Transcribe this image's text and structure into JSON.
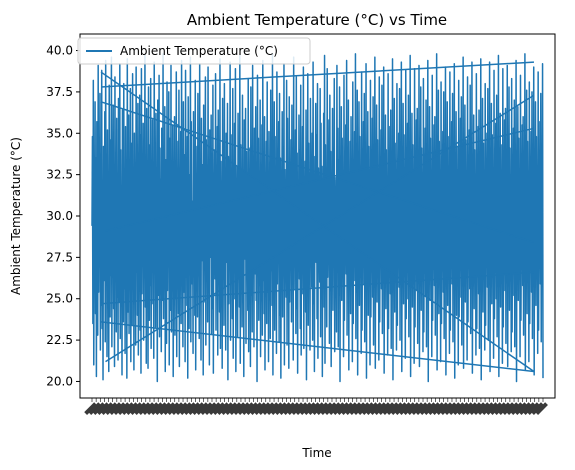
{
  "chart_data": {
    "type": "line",
    "title": "Ambient Temperature (°C) vs Time",
    "xlabel": "Time",
    "ylabel": "Ambient Temperature (°C)",
    "ylim": [
      19.0,
      41.0
    ],
    "yticks": [
      "20.0",
      "22.5",
      "25.0",
      "27.5",
      "30.0",
      "32.5",
      "35.0",
      "37.5",
      "40.0"
    ],
    "ytick_values": [
      20.0,
      22.5,
      25.0,
      27.5,
      30.0,
      32.5,
      35.0,
      37.5,
      40.0
    ],
    "xtick_labels_legible": false,
    "grid": false,
    "legend_placement": "top-left",
    "series": [
      {
        "name": "Ambient Temperature (°C)",
        "color": "#1f77b4",
        "values": [
          29.4,
          34.8,
          23.5,
          38.2,
          21.0,
          30.3,
          26.7,
          36.9,
          24.1,
          33.5,
          20.3,
          35.7,
          28.2,
          22.8,
          39.1,
          25.4,
          31.6,
          27.0,
          37.4,
          21.9,
          32.8,
          24.6,
          38.8,
          23.2,
          30.9,
          20.1,
          34.2,
          29.7,
          26.1,
          36.3,
          22.4,
          39.4,
          27.8,
          33.1,
          21.5,
          35.2,
          25.9,
          31.2,
          20.6,
          37.9,
          28.6,
          23.9,
          34.6,
          26.4,
          39.6,
          22.1,
          32.3,
          29.1,
          36.7,
          24.4,
          30.6,
          20.9,
          38.4,
          27.3,
          33.8,
          23.0,
          35.9,
          25.1,
          31.9,
          21.3,
          37.1,
          28.9,
          24.8,
          39.2,
          22.6,
          34.0,
          26.9,
          30.1,
          20.4,
          36.4,
          29.9,
          23.6,
          38.0,
          25.6,
          32.6,
          21.7,
          35.4,
          27.5,
          33.3,
          20.2,
          39.5,
          28.4,
          24.2,
          36.1,
          22.9,
          31.4,
          26.2,
          37.7,
          21.2,
          34.4,
          29.5,
          23.4,
          38.6,
          25.7,
          32.0,
          20.7,
          35.0,
          27.9,
          30.8,
          22.2,
          39.0,
          26.6,
          33.6,
          24.0,
          36.8,
          21.6,
          31.1,
          28.1,
          37.3,
          23.1,
          34.9,
          20.5,
          38.9,
          25.3,
          32.4,
          27.2,
          35.6,
          22.5,
          30.4,
          29.3,
          39.7,
          24.5,
          33.0,
          21.1,
          36.5,
          26.8,
          31.7,
          20.8,
          37.8,
          28.7,
          23.7,
          34.3,
          25.8,
          38.3,
          22.0,
          32.9,
          27.6,
          35.8,
          24.7,
          30.0,
          21.4,
          39.3,
          28.8,
          33.9,
          23.3,
          36.2,
          26.3,
          31.5,
          20.0,
          37.0,
          29.6,
          25.2,
          38.5,
          22.7,
          34.1,
          27.1,
          32.2,
          21.8,
          35.3,
          28.3,
          24.9,
          39.8,
          23.8,
          30.7,
          26.0,
          36.6,
          20.6,
          33.4,
          29.2,
          22.3,
          38.1,
          25.5,
          31.8,
          27.4,
          37.5,
          21.0,
          34.7,
          28.5,
          24.3,
          39.1,
          23.0,
          32.7,
          26.5,
          35.5,
          20.3,
          30.2,
          29.8,
          36.0,
          22.8,
          33.2,
          25.0,
          38.7,
          21.5,
          31.3,
          27.7,
          34.5,
          24.1,
          37.6,
          20.9,
          32.1,
          28.0,
          35.1,
          23.5,
          39.4,
          26.1,
          30.5,
          22.1,
          36.9,
          29.0,
          25.4,
          33.7,
          21.2,
          38.8,
          27.0,
          31.0,
          24.6,
          34.8,
          20.2,
          37.2,
          28.6,
          23.2,
          32.5,
          26.7,
          39.6,
          22.4,
          35.7,
          29.4,
          25.9,
          30.9,
          21.7,
          36.3,
          27.8,
          33.5,
          24.0,
          38.2,
          20.7,
          31.6,
          28.2,
          34.2,
          23.9,
          37.4,
          26.4,
          32.8,
          22.6,
          39.2,
          25.1,
          30.3,
          21.3,
          35.9,
          29.7,
          27.3,
          33.1,
          20.4,
          36.7,
          24.8,
          31.2,
          28.9,
          38.4,
          22.2,
          34.6,
          26.9,
          32.3,
          23.6,
          39.0,
          25.6,
          30.6,
          21.0,
          35.2,
          28.4,
          27.5,
          36.1,
          22.9,
          33.8,
          24.4,
          37.9,
          20.5,
          31.9,
          29.1,
          34.0,
          26.2,
          38.6,
          23.1,
          32.0,
          25.3,
          35.4,
          21.6,
          36.4,
          27.9,
          30.1,
          24.2,
          39.5,
          22.0,
          33.3,
          28.7,
          31.4,
          20.8,
          37.1,
          26.6,
          34.4,
          23.4,
          38.0,
          25.7,
          32.6,
          21.9,
          35.0,
          29.3,
          27.2,
          36.8,
          20.1,
          33.6,
          24.7,
          30.8,
          28.1,
          39.3,
          22.5,
          34.9,
          26.0,
          31.1,
          23.8,
          37.7,
          21.4,
          32.9,
          27.6,
          35.6,
          25.0,
          38.9,
          20.6,
          30.4,
          29.6,
          33.0,
          22.7,
          36.2,
          26.3,
          31.7,
          24.5,
          39.7,
          21.1,
          34.3,
          28.3,
          32.4,
          23.3,
          37.3,
          25.5,
          30.0,
          20.3,
          35.8,
          29.9,
          27.4,
          36.5,
          22.3,
          33.9,
          26.8,
          31.5,
          24.3,
          38.3,
          21.8,
          32.2,
          28.8,
          34.1,
          20.9,
          37.8,
          25.2,
          30.7,
          23.0,
          39.1,
          27.1,
          33.4,
          22.1,
          35.3,
          29.5,
          26.5,
          36.6,
          24.9,
          31.8,
          20.0,
          38.5,
          28.0,
          34.7,
          23.7,
          32.1,
          25.8,
          37.0,
          21.5,
          30.2,
          27.7,
          35.5,
          22.8,
          39.4,
          26.1,
          33.2,
          24.1,
          36.0,
          20.7,
          31.3,
          29.2,
          34.5,
          23.5,
          38.1,
          25.4,
          32.7,
          21.2,
          35.1,
          28.5,
          30.5,
          22.6,
          37.6,
          26.7,
          33.7,
          24.6,
          39.8,
          20.4,
          31.0,
          29.0,
          36.9,
          23.1,
          34.8,
          27.0,
          32.5,
          21.7,
          38.7,
          25.9,
          30.9,
          28.6,
          35.7,
          22.4,
          37.4,
          24.0,
          33.5,
          20.2,
          31.6,
          29.7,
          36.3,
          23.9,
          34.2,
          26.4,
          39.2,
          21.0,
          32.8,
          28.2,
          30.3,
          25.1,
          38.2,
          22.2,
          35.9,
          27.3,
          33.1,
          20.8,
          37.2,
          24.8,
          31.2,
          29.4,
          34.6,
          23.6,
          36.7,
          26.9,
          32.3,
          21.3,
          39.6,
          25.6,
          30.6,
          28.9,
          35.2,
          22.9,
          38.4,
          24.4,
          33.8,
          20.5,
          31.9,
          27.5,
          36.1,
          26.2,
          34.0,
          23.2,
          37.9,
          21.6,
          32.0,
          29.1,
          35.4,
          25.3,
          39.0,
          22.0,
          30.1,
          28.4,
          33.3,
          24.2,
          36.4,
          20.1,
          31.4,
          27.9,
          38.6,
          23.4,
          34.4,
          26.6,
          32.6,
          21.9,
          37.1,
          29.3,
          30.8,
          25.7,
          35.0,
          22.5,
          39.3,
          24.7,
          33.6,
          20.6,
          31.1,
          28.1,
          36.8,
          27.2,
          34.9,
          23.8,
          38.0,
          21.4,
          32.9,
          29.6,
          30.4,
          26.0,
          37.7,
          22.7,
          35.6,
          25.0,
          33.0,
          20.3,
          31.7,
          28.7,
          36.2,
          24.5,
          39.7,
          21.1,
          34.3,
          27.6,
          32.4,
          23.3,
          38.9,
          26.3,
          30.0,
          29.9,
          35.8,
          22.3,
          37.3,
          25.5,
          33.9,
          20.9,
          31.5,
          28.3,
          36.5,
          24.3,
          34.1,
          27.4,
          38.3,
          21.8,
          32.2,
          29.2,
          30.7,
          23.0,
          39.1,
          26.8,
          35.3,
          22.1,
          33.4,
          25.2,
          37.8,
          20.0,
          31.8,
          28.0,
          36.6,
          24.9,
          34.7,
          27.1,
          32.1,
          21.5,
          38.5,
          23.7,
          30.2,
          29.5,
          35.5,
          26.5,
          39.4,
          22.8,
          33.2,
          25.8,
          37.0,
          20.7,
          31.3,
          28.8,
          34.5,
          24.1,
          36.0,
          27.7,
          32.7,
          21.2,
          38.1,
          23.5,
          30.5,
          29.0,
          35.1,
          26.1,
          39.8,
          22.6,
          33.7,
          25.4,
          37.6,
          20.4,
          31.0,
          28.5,
          36.9,
          24.6,
          34.8,
          27.8,
          32.5,
          21.7,
          38.7,
          23.1,
          30.9,
          29.7,
          35.7,
          25.9,
          37.4,
          22.4,
          33.5,
          26.7,
          39.2,
          20.2,
          31.6,
          28.2,
          36.3,
          24.0,
          34.2,
          27.3,
          32.8,
          21.0,
          38.2,
          23.9,
          30.3,
          29.4,
          35.9,
          25.1,
          37.2,
          22.2,
          33.1,
          26.4,
          39.6,
          20.8,
          31.2,
          28.9,
          36.7,
          24.8,
          34.6,
          27.5,
          32.3,
          21.3,
          38.4,
          23.6,
          30.6,
          29.1,
          35.2,
          25.6,
          37.9,
          22.9,
          33.8,
          26.9,
          39.0,
          20.5,
          31.9,
          28.4,
          36.1,
          24.4,
          34.0,
          27.0,
          32.0,
          21.6,
          38.6,
          23.2,
          30.1,
          29.3,
          35.4,
          25.3,
          36.4,
          22.0,
          33.3,
          26.2,
          39.5,
          20.1,
          31.4,
          28.7,
          37.1,
          24.2,
          34.4,
          27.9,
          32.6,
          21.9,
          38.0,
          23.4,
          30.8,
          29.6,
          35.0,
          25.7,
          37.7,
          22.5,
          33.6,
          26.6,
          39.3,
          20.6,
          31.1,
          28.1,
          36.8,
          24.7,
          34.9,
          27.2,
          32.9,
          21.4,
          38.8,
          23.8,
          30.4,
          29.9,
          35.6,
          25.0,
          37.3,
          22.7,
          33.0,
          26.0,
          39.7,
          20.3,
          31.7,
          28.6,
          36.2,
          24.5,
          34.3,
          27.6,
          32.4,
          21.1,
          38.9,
          23.3,
          30.0,
          29.2,
          35.8,
          25.5,
          36.5,
          22.3,
          33.9,
          26.8,
          39.1,
          20.9,
          31.5,
          28.3,
          37.8,
          24.3,
          34.1,
          27.4,
          32.2,
          21.8,
          38.3,
          23.0,
          30.7,
          29.5,
          35.3,
          25.2,
          37.0,
          22.1,
          33.4,
          26.5,
          39.4,
          20.0,
          31.8,
          28.0,
          36.6,
          24.9,
          34.7,
          27.1,
          32.1,
          21.5,
          38.5,
          23.7,
          30.2,
          29.0,
          35.5,
          25.8,
          36.0,
          22.8,
          33.2,
          26.3,
          39.8,
          20.7,
          31.3,
          28.8,
          37.6,
          24.1,
          34.5,
          27.7,
          32.7,
          21.2,
          38.1,
          23.5,
          30.5,
          29.8,
          35.1,
          25.4,
          37.5,
          22.6,
          33.7,
          26.1,
          39.0,
          20.4,
          31.0,
          28.5,
          36.9,
          24.6,
          34.8,
          27.8,
          32.5,
          21.7,
          38.7,
          23.1,
          30.9,
          29.3,
          35.7,
          25.9,
          37.4,
          22.4,
          33.5,
          26.7,
          39.2,
          20.2,
          31.6,
          28.2,
          36.3,
          24.0,
          34.2,
          27.3,
          32.8,
          21.0,
          38.2,
          23.9,
          30.3,
          29.7,
          35.9,
          25.1,
          37.2,
          22.2,
          33.1,
          26.4,
          39.6,
          20.8,
          31.2,
          28.9,
          36.7,
          24.8,
          34.6,
          27.5,
          32.3,
          21.3,
          38.4,
          23.6,
          30.6,
          29.1,
          35.2,
          25.6,
          37.9,
          22.9,
          33.8,
          26.9,
          39.3,
          20.5,
          31.9,
          28.4,
          36.1,
          24.4,
          34.0,
          27.0,
          32.0,
          21.6,
          38.6,
          23.2,
          30.1,
          29.4,
          35.4,
          25.3,
          36.4,
          22.0,
          33.3,
          26.2,
          39.5,
          20.1,
          31.4,
          28.7,
          37.1,
          24.2,
          34.4,
          27.9,
          32.6,
          21.9,
          38.0,
          23.4,
          30.8,
          29.6,
          35.0,
          25.7,
          37.7,
          22.5,
          33.6,
          26.6,
          39.3,
          20.6,
          31.1,
          28.1,
          36.8,
          24.7,
          34.9,
          27.2,
          32.9,
          21.4,
          38.8,
          23.8,
          30.4,
          29.9,
          35.6,
          25.0,
          37.3,
          22.7,
          33.0,
          26.0,
          39.7,
          20.3,
          31.7,
          28.6,
          36.2,
          24.5,
          34.3,
          27.6,
          32.4,
          21.1,
          38.9,
          23.3,
          30.0,
          29.2,
          35.8,
          25.5,
          36.5,
          22.3,
          33.9,
          26.8,
          39.1,
          20.9,
          31.5,
          28.3,
          37.8,
          24.3,
          34.1,
          27.4,
          32.2,
          21.8,
          38.3,
          23.0,
          30.7,
          29.5,
          35.3,
          25.2,
          37.0,
          22.1,
          33.4,
          26.5,
          39.4,
          20.0,
          31.8,
          28.0,
          36.6,
          24.9,
          34.7,
          27.1,
          32.1,
          21.5,
          38.5,
          23.7,
          30.2,
          29.0,
          35.5,
          25.8,
          36.0,
          22.8,
          33.2,
          26.3,
          39.8,
          20.7,
          31.3,
          28.8,
          37.6,
          24.1,
          34.5,
          27.7,
          32.7,
          21.2,
          38.1,
          23.5,
          30.5,
          29.8,
          35.1,
          25.4,
          37.5,
          22.6,
          33.7,
          26.1,
          39.0,
          20.4,
          31.0,
          28.5,
          36.9,
          24.6,
          34.8,
          27.8,
          32.5,
          21.7,
          38.7,
          23.1,
          30.9,
          29.3,
          35.7,
          25.9,
          37.4,
          22.4,
          33.5,
          26.7,
          39.2,
          20.2
        ]
      }
    ],
    "wrap_segments": [
      {
        "from_index": 0.02,
        "from": 38.7,
        "to_index": 0.98,
        "to": 20.6
      },
      {
        "from_index": 0.02,
        "from": 37.8,
        "to_index": 0.98,
        "to": 39.3
      },
      {
        "from_index": 0.02,
        "from": 36.9,
        "to_index": 0.98,
        "to": 28.4
      },
      {
        "from_index": 0.02,
        "from": 24.7,
        "to_index": 0.98,
        "to": 26.6
      },
      {
        "from_index": 0.02,
        "from": 23.6,
        "to_index": 0.98,
        "to": 20.6
      },
      {
        "from_index": 0.03,
        "from": 29.1,
        "to_index": 0.98,
        "to": 35.3
      },
      {
        "from_index": 0.03,
        "from": 21.2,
        "to_index": 0.98,
        "to": 37.3
      }
    ]
  }
}
